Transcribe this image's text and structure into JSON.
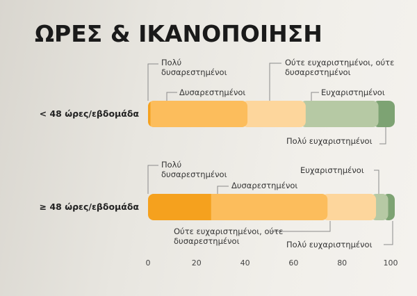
{
  "chart_data": {
    "type": "bar",
    "orientation": "horizontal",
    "stacked": true,
    "title": "ΩΡΕΣ & ΙΚΑΝΟΠΟΙΗΣΗ",
    "categories": [
      "< 48 ώρες/εβδομάδα",
      "≥ 48 ώρες/εβδομάδα"
    ],
    "series": [
      {
        "name": "Πολύ δυσαρεστημένοι",
        "color": "#f5a11e",
        "values": [
          1,
          26
        ]
      },
      {
        "name": "Δυσαρεστημένοι",
        "color": "#fcbd5c",
        "values": [
          40,
          48
        ]
      },
      {
        "name": "Ούτε ευχαριστημένοι, ούτε δυσαρεστημένοι",
        "color": "#fdd69c",
        "values": [
          24,
          20
        ]
      },
      {
        "name": "Ευχαριστημένοι",
        "color": "#b6c9a4",
        "values": [
          30,
          5
        ]
      },
      {
        "name": "Πολύ ευχαριστημένοι",
        "color": "#7da373",
        "values": [
          5,
          1
        ]
      }
    ],
    "xlim": [
      0,
      100
    ],
    "xticks": [
      0,
      20,
      40,
      60,
      80,
      100
    ]
  }
}
